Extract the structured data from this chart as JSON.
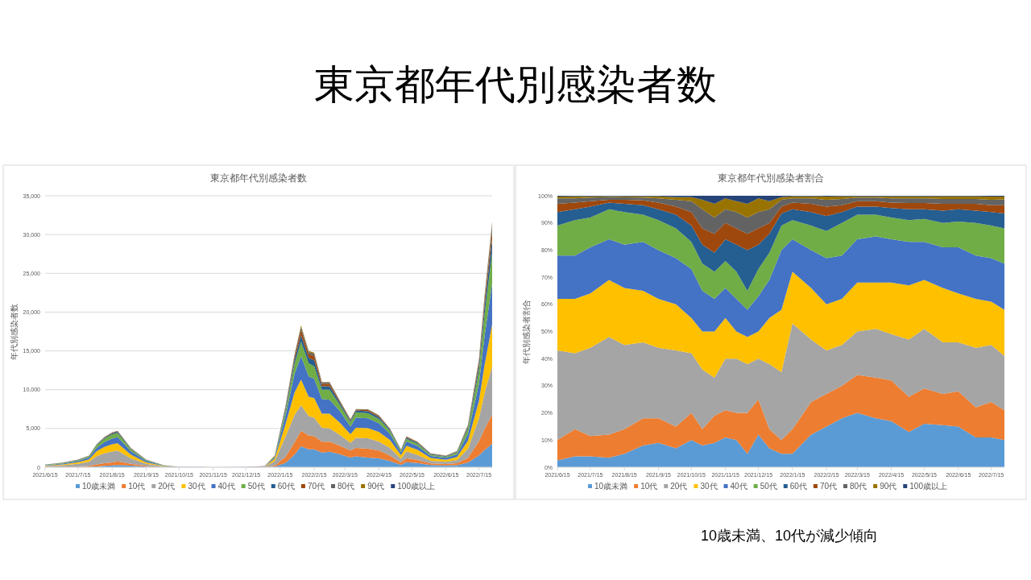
{
  "chart_data": [
    {
      "type": "other",
      "title": "東京都年代別感染者数",
      "annotations": [
        "10歳未満、10代が減少傾向"
      ]
    },
    {
      "type": "area",
      "stacked": true,
      "title": "東京都年代別感染者数",
      "ylabel": "年代別感染者数",
      "legend": "bottom",
      "grid": "y",
      "x": [
        "2021-06-15",
        "2021-07-01",
        "2021-07-15",
        "2021-07-25",
        "2021-08-01",
        "2021-08-08",
        "2021-08-15",
        "2021-08-20",
        "2021-09-01",
        "2021-09-15",
        "2021-10-01",
        "2021-10-15",
        "2021-11-15",
        "2021-12-15",
        "2022-01-01",
        "2022-01-10",
        "2022-01-20",
        "2022-01-28",
        "2022-02-03",
        "2022-02-10",
        "2022-02-15",
        "2022-02-22",
        "2022-03-01",
        "2022-03-10",
        "2022-03-20",
        "2022-03-25",
        "2022-04-05",
        "2022-04-15",
        "2022-04-25",
        "2022-05-05",
        "2022-05-10",
        "2022-05-20",
        "2022-06-01",
        "2022-06-15",
        "2022-06-25",
        "2022-07-05",
        "2022-07-15",
        "2022-07-20",
        "2022-07-27"
      ],
      "xlim": [
        "2021-06-15",
        "2022-07-27"
      ],
      "xticks": [
        {
          "value": "2021-06-15",
          "label": "2021/6/15"
        },
        {
          "value": "2021-07-15",
          "label": "2021/7/15"
        },
        {
          "value": "2021-08-15",
          "label": "2021/8/15"
        },
        {
          "value": "2021-09-15",
          "label": "2021/9/15"
        },
        {
          "value": "2021-10-15",
          "label": "2021/10/15"
        },
        {
          "value": "2021-11-15",
          "label": "2021/11/15"
        },
        {
          "value": "2021-12-15",
          "label": "2021/12/15"
        },
        {
          "value": "2022-01-15",
          "label": "2022/1/15"
        },
        {
          "value": "2022-02-15",
          "label": "2022/2/15"
        },
        {
          "value": "2022-03-15",
          "label": "2022/3/15"
        },
        {
          "value": "2022-04-15",
          "label": "2022/4/15"
        },
        {
          "value": "2022-05-15",
          "label": "2022/5/15"
        },
        {
          "value": "2022-06-15",
          "label": "2022/6/15"
        },
        {
          "value": "2022-07-15",
          "label": "2022/7/15"
        }
      ],
      "ylim": [
        0,
        35000
      ],
      "yticks": [
        0,
        {
          "value": 5000,
          "label": "5,000"
        },
        {
          "value": 10000,
          "label": "10,000"
        },
        {
          "value": 15000,
          "label": "15,000"
        },
        {
          "value": 20000,
          "label": "20,000"
        },
        {
          "value": 25000,
          "label": "25,000"
        },
        {
          "value": 30000,
          "label": "30,000"
        },
        {
          "value": 35000,
          "label": "35,000"
        }
      ],
      "series": [
        {
          "name": "10歳未満",
          "color": "#5b9bd5",
          "values": [
            10,
            24,
            40,
            55,
            105,
            180,
            225,
            280,
            200,
            90,
            18,
            6,
            1,
            2,
            8,
            75,
            560,
            1600,
            2700,
            2300,
            2300,
            1900,
            2000,
            1700,
            1250,
            1400,
            1250,
            1150,
            800,
            300,
            640,
            540,
            280,
            225,
            270,
            600,
            1540,
            2200,
            3000
          ]
        },
        {
          "name": "10代",
          "color": "#ed7d31",
          "values": [
            25,
            60,
            75,
            125,
            255,
            330,
            405,
            470,
            250,
            90,
            20,
            6,
            1,
            3,
            8,
            135,
            800,
            1600,
            2000,
            1800,
            1700,
            1400,
            1300,
            1100,
            900,
            1100,
            1150,
            1000,
            700,
            300,
            520,
            400,
            210,
            195,
            250,
            600,
            1820,
            2700,
            3800
          ]
        },
        {
          "name": "20代",
          "color": "#a5a5a5",
          "values": [
            115,
            170,
            325,
            530,
            1080,
            1290,
            1395,
            1410,
            700,
            260,
            70,
            13,
            2,
            3,
            37,
            570,
            2640,
            3500,
            3300,
            2500,
            2400,
            1800,
            1700,
            1400,
            1000,
            1300,
            1350,
            1150,
            1000,
            480,
            880,
            650,
            340,
            270,
            400,
            1200,
            2940,
            4600,
            6200
          ]
        },
        {
          "name": "30代",
          "color": "#ffc000",
          "values": [
            65,
            120,
            200,
            310,
            630,
            820,
            945,
            940,
            475,
            180,
            42,
            8,
            2,
            2,
            35,
            300,
            1600,
            2900,
            3300,
            2500,
            2500,
            1800,
            1900,
            1600,
            1100,
            1300,
            1300,
            1250,
            1000,
            480,
            720,
            660,
            360,
            270,
            400,
            1000,
            2240,
            3600,
            5400
          ]
        },
        {
          "name": "40代",
          "color": "#4472c4",
          "values": [
            55,
            96,
            170,
            240,
            450,
            620,
            720,
            800,
            450,
            180,
            42,
            11,
            1,
            3,
            33,
            200,
            1120,
            2400,
            3000,
            2600,
            2500,
            1900,
            1800,
            1500,
            1000,
            1300,
            1250,
            1100,
            800,
            370,
            560,
            500,
            270,
            255,
            350,
            900,
            2240,
            3700,
            5300
          ]
        },
        {
          "name": "50代",
          "color": "#70ad47",
          "values": [
            40,
            78,
            110,
            165,
            330,
            450,
            540,
            520,
            250,
            110,
            28,
            6,
            1,
            2,
            14,
            110,
            640,
            1300,
            1900,
            1700,
            1600,
            1200,
            1300,
            800,
            560,
            700,
            650,
            550,
            400,
            200,
            340,
            300,
            160,
            140,
            250,
            700,
            1680,
            2800,
            4000
          ]
        },
        {
          "name": "60代",
          "color": "#255e91",
          "values": [
            18,
            24,
            40,
            40,
            75,
            110,
            135,
            150,
            90,
            40,
            12,
            4,
            1,
            2,
            7,
            50,
            320,
            550,
            800,
            700,
            800,
            450,
            450,
            300,
            200,
            230,
            280,
            250,
            150,
            80,
            160,
            120,
            80,
            70,
            90,
            250,
            700,
            1100,
            1700
          ]
        },
        {
          "name": "70代",
          "color": "#9e480e",
          "values": [
            10,
            15,
            20,
            20,
            45,
            60,
            70,
            80,
            45,
            25,
            8,
            3,
            1,
            1,
            4,
            30,
            180,
            350,
            700,
            500,
            550,
            300,
            300,
            180,
            110,
            100,
            150,
            130,
            80,
            50,
            100,
            70,
            45,
            40,
            50,
            130,
            420,
            600,
            1100
          ]
        },
        {
          "name": "80代",
          "color": "#636363",
          "values": [
            7,
            9,
            13,
            10,
            20,
            30,
            50,
            40,
            25,
            15,
            6,
            2,
            0,
            1,
            3,
            20,
            100,
            200,
            400,
            250,
            300,
            170,
            170,
            90,
            55,
            50,
            80,
            80,
            50,
            25,
            50,
            40,
            35,
            25,
            30,
            80,
            280,
            420,
            700
          ]
        },
        {
          "name": "90代",
          "color": "#997300",
          "values": [
            3,
            2,
            5,
            4,
            8,
            8,
            13,
            8,
            13,
            8,
            3,
            1,
            0,
            1,
            1,
            8,
            30,
            80,
            170,
            130,
            130,
            70,
            70,
            25,
            20,
            15,
            30,
            30,
            15,
            10,
            25,
            15,
            15,
            8,
            8,
            30,
            110,
            220,
            300
          ]
        },
        {
          "name": "100歳以上",
          "color": "#264478",
          "values": [
            null,
            null,
            null,
            null,
            null,
            null,
            null,
            null,
            null,
            null,
            null,
            null,
            null,
            null,
            null,
            null,
            null,
            null,
            null,
            null,
            null,
            null,
            null,
            null,
            null,
            null,
            null,
            null,
            null,
            null,
            null,
            null,
            null,
            null,
            null,
            null,
            null,
            60,
            100
          ]
        }
      ]
    },
    {
      "type": "area",
      "stacked": true,
      "title": "東京都年代別感染者割合",
      "ylabel": "年代別感染者割合",
      "legend": "bottom",
      "x": [
        "2021-06-15",
        "2021-07-01",
        "2021-07-15",
        "2021-08-01",
        "2021-08-15",
        "2021-09-01",
        "2021-09-15",
        "2021-10-01",
        "2021-10-15",
        "2021-10-25",
        "2021-11-05",
        "2021-11-15",
        "2021-11-25",
        "2021-12-05",
        "2021-12-15",
        "2021-12-25",
        "2022-01-05",
        "2022-01-15",
        "2022-02-01",
        "2022-02-15",
        "2022-03-01",
        "2022-03-15",
        "2022-04-01",
        "2022-04-15",
        "2022-05-01",
        "2022-05-15",
        "2022-06-01",
        "2022-06-15",
        "2022-07-01",
        "2022-07-15",
        "2022-07-27"
      ],
      "xlim": [
        "2021-06-15",
        "2022-07-27"
      ],
      "xticks": [
        {
          "value": "2021-06-15",
          "label": "2021/6/15"
        },
        {
          "value": "2021-07-15",
          "label": "2021/7/15"
        },
        {
          "value": "2021-08-15",
          "label": "2021/8/15"
        },
        {
          "value": "2021-09-15",
          "label": "2021/9/15"
        },
        {
          "value": "2021-10-15",
          "label": "2021/10/15"
        },
        {
          "value": "2021-11-15",
          "label": "2021/11/15"
        },
        {
          "value": "2021-12-15",
          "label": "2021/12/15"
        },
        {
          "value": "2022-01-15",
          "label": "2022/1/15"
        },
        {
          "value": "2022-02-15",
          "label": "2022/2/15"
        },
        {
          "value": "2022-03-15",
          "label": "2022/3/15"
        },
        {
          "value": "2022-04-15",
          "label": "2022/4/15"
        },
        {
          "value": "2022-05-15",
          "label": "2022/5/15"
        },
        {
          "value": "2022-06-15",
          "label": "2022/6/15"
        },
        {
          "value": "2022-07-15",
          "label": "2022/7/15"
        }
      ],
      "ylim": [
        0,
        100
      ],
      "yticks": [
        {
          "value": 0,
          "label": "0%"
        },
        {
          "value": 10,
          "label": "10%"
        },
        {
          "value": 20,
          "label": "20%"
        },
        {
          "value": 30,
          "label": "30%"
        },
        {
          "value": 40,
          "label": "40%"
        },
        {
          "value": 50,
          "label": "50%"
        },
        {
          "value": 60,
          "label": "60%"
        },
        {
          "value": 70,
          "label": "70%"
        },
        {
          "value": 80,
          "label": "80%"
        },
        {
          "value": 90,
          "label": "90%"
        },
        {
          "value": 100,
          "label": "100%"
        }
      ],
      "series": [
        {
          "name": "10歳未満",
          "color": "#5b9bd5",
          "values": [
            2.5,
            4,
            4,
            3.5,
            5,
            8,
            9,
            7,
            10,
            8,
            9,
            11,
            10,
            5,
            12,
            7,
            5,
            5,
            12,
            15,
            18,
            20,
            18,
            17,
            13,
            16,
            15.5,
            15,
            11,
            11,
            10
          ]
        },
        {
          "name": "10代",
          "color": "#ed7d31",
          "values": [
            7.5,
            10,
            7.5,
            8.5,
            9,
            10,
            9,
            8,
            10,
            6,
            10,
            10,
            10,
            15,
            13,
            7,
            5,
            9,
            12,
            12,
            12,
            14,
            15,
            15,
            13,
            13,
            11.5,
            13,
            11,
            13,
            11
          ]
        },
        {
          "name": "20代",
          "color": "#a5a5a5",
          "values": [
            33,
            28,
            32.5,
            36,
            31,
            28,
            26,
            28,
            22,
            22,
            14,
            19,
            20,
            18,
            15,
            24,
            25,
            39,
            23,
            16,
            15,
            16,
            18,
            17,
            21,
            22,
            19,
            18,
            22,
            21,
            20
          ]
        },
        {
          "name": "30代",
          "color": "#ffc000",
          "values": [
            19,
            20,
            20,
            21,
            21,
            19,
            18,
            17,
            13,
            14,
            17,
            15,
            10,
            10,
            10,
            17,
            23,
            19,
            19,
            17,
            17,
            18,
            17,
            19,
            20,
            18,
            20,
            18,
            18,
            16,
            17
          ]
        },
        {
          "name": "40代",
          "color": "#4472c4",
          "values": [
            16,
            16,
            17,
            15,
            16,
            18,
            18,
            17,
            18,
            15,
            12,
            11,
            12,
            10,
            13,
            14,
            22,
            12,
            14,
            17,
            16,
            16,
            17,
            16,
            16,
            14,
            15,
            17,
            16,
            16,
            17
          ]
        },
        {
          "name": "50代",
          "color": "#70ad47",
          "values": [
            11,
            13,
            11,
            11,
            12,
            10,
            11,
            11,
            10,
            10,
            10,
            10,
            10,
            7,
            10,
            10,
            9,
            7,
            9,
            10,
            12,
            9,
            8,
            8,
            8,
            8.5,
            9,
            9.5,
            12,
            12,
            13
          ]
        },
        {
          "name": "60代",
          "color": "#255e91",
          "values": [
            5,
            4,
            4,
            2.5,
            3,
            3.5,
            4,
            5,
            6,
            7,
            7,
            8,
            10,
            15,
            9,
            7,
            4.5,
            4,
            5,
            5.5,
            4,
            3,
            3,
            3.5,
            4,
            3.5,
            4.5,
            4.5,
            4.5,
            5,
            5.5
          ]
        },
        {
          "name": "70代",
          "color": "#9e480e",
          "values": [
            3,
            2.5,
            2,
            1,
            1.5,
            1.8,
            2.5,
            3,
            5,
            6,
            7,
            6,
            6,
            6,
            6,
            4,
            2.5,
            2.5,
            3,
            3.5,
            2.5,
            2,
            2,
            2,
            2.3,
            2.3,
            2.5,
            2,
            2.5,
            2.5,
            3
          ]
        },
        {
          "name": "80代",
          "color": "#636363",
          "values": [
            2,
            1.5,
            1.3,
            1,
            0.9,
            1,
            1.5,
            2.5,
            4,
            7,
            6,
            5,
            6,
            6,
            6,
            5,
            2.5,
            1.5,
            2,
            2.5,
            2.3,
            1.3,
            1.3,
            1.5,
            1.7,
            1.7,
            1.8,
            1.8,
            1.8,
            2,
            2.2
          ]
        },
        {
          "name": "90代",
          "color": "#997300",
          "values": [
            0.7,
            0.8,
            0.5,
            0.3,
            0.4,
            0.5,
            0.8,
            1,
            1.5,
            3.5,
            5,
            4,
            4,
            5,
            5,
            3,
            1,
            0.8,
            0.8,
            1.2,
            1,
            0.5,
            0.5,
            0.8,
            0.8,
            0.8,
            1,
            1,
            1,
            1.2,
            1
          ]
        },
        {
          "name": "100歳以上",
          "color": "#264478",
          "values": [
            0.3,
            0.2,
            0.2,
            0.2,
            0.2,
            0.2,
            0.2,
            0.5,
            0.5,
            1.5,
            3,
            1,
            2,
            3,
            1,
            2,
            0.5,
            0.2,
            0.2,
            0.3,
            0.2,
            0.2,
            0.2,
            0.2,
            0.2,
            0.2,
            0.2,
            0.2,
            0.2,
            0.3,
            0.3
          ]
        }
      ]
    }
  ]
}
